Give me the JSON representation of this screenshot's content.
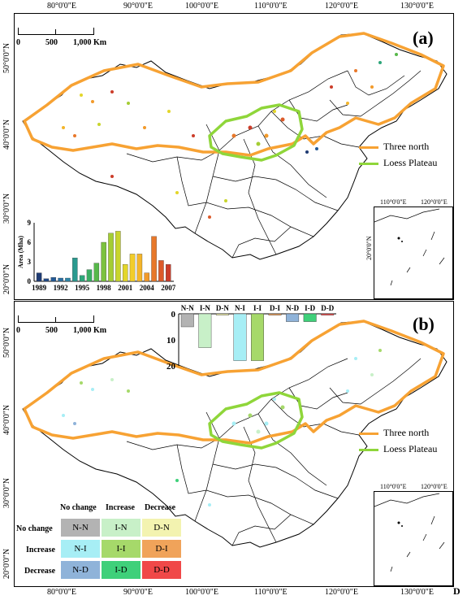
{
  "axes": {
    "top_lon": [
      "80°0'0\"E",
      "90°0'0\"E",
      "100°0'0\"E",
      "110°0'0\"E",
      "120°0'0\"E",
      "130°0'0\"E"
    ],
    "bottom_lon": [
      "80°0'0\"E",
      "90°0'0\"E",
      "100°0'0\"E",
      "110°0'0\"E",
      "120°0'0\"E",
      "130°0'0\"E"
    ],
    "lat_a": [
      "50°0'0\"N",
      "40°0'0\"N",
      "30°0'0\"N",
      "20°0'0\"N"
    ],
    "lat_b": [
      "50°0'0\"N",
      "40°0'0\"N",
      "30°0'0\"N",
      "20°0'0\"N"
    ],
    "inset_lon": [
      "110°0'0\"E",
      "120°0'0\"E"
    ],
    "inset_lat": "20°0'0\"N"
  },
  "panel_a": {
    "label": "(a)",
    "scale": {
      "t0": "0",
      "t1": "500",
      "t2": "1,000 Km"
    },
    "legend": {
      "three_north": "Three north",
      "loess": "Loess Plateau"
    }
  },
  "panel_b": {
    "label": "(b)",
    "scale": {
      "t0": "0",
      "t1": "500",
      "t2": "1,000 Km"
    },
    "legend": {
      "three_north": "Three north",
      "loess": "Loess Plateau"
    },
    "matrix": {
      "col_heads": [
        "No change",
        "Increase",
        "Decrease"
      ],
      "row_heads": [
        "No change",
        "Increase",
        "Decrease"
      ],
      "cells": [
        [
          {
            "label": "N-N",
            "color": "#b3b3b3"
          },
          {
            "label": "I-N",
            "color": "#c8f0c8"
          },
          {
            "label": "D-N",
            "color": "#f3f3b0"
          }
        ],
        [
          {
            "label": "N-I",
            "color": "#a7eef5"
          },
          {
            "label": "I-I",
            "color": "#a6d96a"
          },
          {
            "label": "D-I",
            "color": "#f0a35a"
          }
        ],
        [
          {
            "label": "N-D",
            "color": "#8fb3d9"
          },
          {
            "label": "I-D",
            "color": "#3fd07a"
          },
          {
            "label": "D-D",
            "color": "#f04848"
          }
        ]
      ]
    }
  },
  "colors": {
    "three_north": "#f7a233",
    "loess": "#8fd63a"
  },
  "chart_data": [
    {
      "type": "bar",
      "ylabel": "Area (Mha)",
      "ylim": [
        0,
        9
      ],
      "yticks": [
        "9",
        "6",
        "3",
        "0"
      ],
      "xtick_labels": [
        "1989",
        "1992",
        "1995",
        "1998",
        "2001",
        "2004",
        "2007"
      ],
      "categories": [
        "1989",
        "1990",
        "1991",
        "1992",
        "1993",
        "1994",
        "1995",
        "1996",
        "1997",
        "1998",
        "1999",
        "2000",
        "2001",
        "2002",
        "2003",
        "2004",
        "2005",
        "2006",
        "2007"
      ],
      "values": [
        1.3,
        0.4,
        0.6,
        0.5,
        0.5,
        3.6,
        0.9,
        1.8,
        2.8,
        6.0,
        7.4,
        7.7,
        2.6,
        4.2,
        4.2,
        1.3,
        6.9,
        3.2,
        2.6
      ],
      "colors": [
        "#1f3b73",
        "#214a86",
        "#235a96",
        "#2a6fa3",
        "#2e86a8",
        "#2a9a8f",
        "#2ea67a",
        "#3aae63",
        "#57b84a",
        "#7cc23e",
        "#a4cd34",
        "#c8d52c",
        "#e3d62a",
        "#f2cd2a",
        "#f4b52a",
        "#f29a2a",
        "#e8782a",
        "#dc5a2a",
        "#cc3d2a"
      ]
    },
    {
      "type": "bar",
      "categories": [
        "N-N",
        "I-N",
        "D-N",
        "N-I",
        "I-I",
        "D-I",
        "N-D",
        "I-D",
        "D-D"
      ],
      "values": [
        5,
        13,
        0.5,
        18,
        18,
        0.5,
        3,
        3,
        0.5
      ],
      "ylim": [
        0,
        20
      ],
      "yticks": [
        "0",
        "10",
        "20"
      ],
      "colors": [
        "#b3b3b3",
        "#c8f0c8",
        "#f3f3b0",
        "#a7eef5",
        "#a6d96a",
        "#f0a35a",
        "#8fb3d9",
        "#3fd07a",
        "#f04848"
      ]
    }
  ],
  "footer_mark": "D"
}
